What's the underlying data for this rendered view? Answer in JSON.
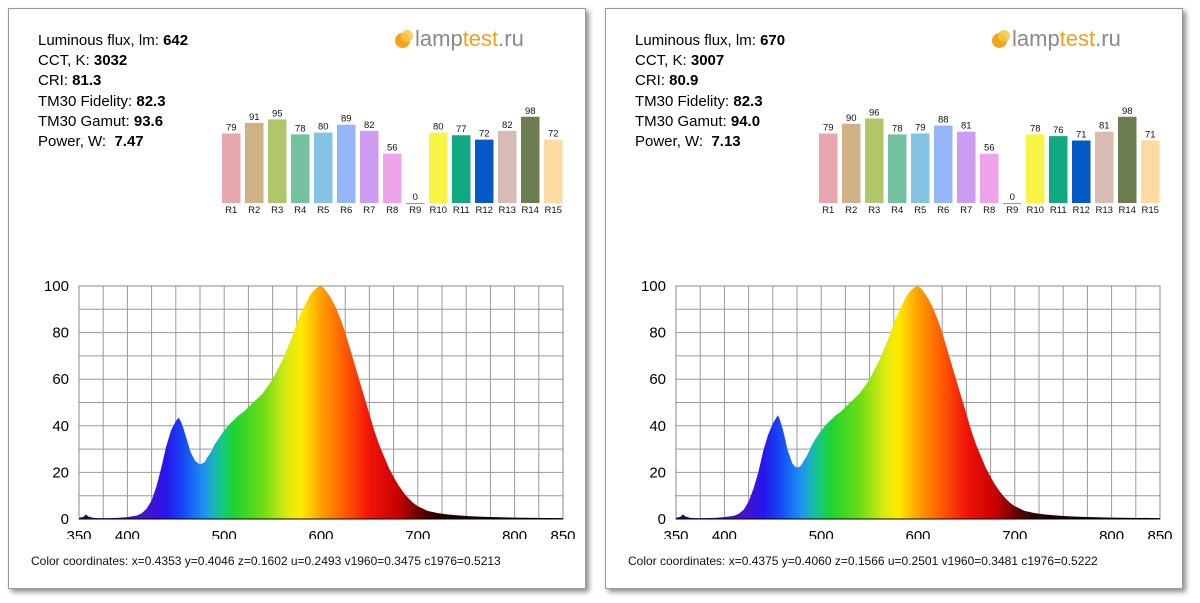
{
  "labels": {
    "flux": "Luminous flux, lm:",
    "cct": "CCT, K:",
    "cri": "CRI:",
    "fidelity": "TM30 Fidelity:",
    "gamut": "TM30 Gamut:",
    "power": "Power, W:",
    "coords": "Color coordinates:"
  },
  "logo": {
    "part1": "lamp",
    "part2": "test",
    "part3": ".ru"
  },
  "panels": [
    {
      "flux": "642",
      "cct": "3032",
      "cri": "81.3",
      "fidelity": "82.3",
      "gamut": "93.6",
      "power": "7.47",
      "coords": "x=0.4353 y=0.4046 z=0.1602 u=0.2493 v1960=0.3475 c1976=0.5213"
    },
    {
      "flux": "670",
      "cct": "3007",
      "cri": "80.9",
      "fidelity": "82.3",
      "gamut": "94.0",
      "power": "7.13",
      "coords": "x=0.4375 y=0.4060 z=0.1566 u=0.2501 v1960=0.3481 c1976=0.5222"
    }
  ],
  "colors": {
    "cri_bars": [
      "#e8a6ae",
      "#ceb184",
      "#b0c66a",
      "#74c29f",
      "#84c3e2",
      "#94b5f8",
      "#cc9cf2",
      "#eea4ea",
      "#e11c2c",
      "#f8f446",
      "#11a983",
      "#0559c6",
      "#d7bcb4",
      "#6b7c4e",
      "#fedaa0"
    ],
    "grid": "#9a9a9a"
  },
  "chart_data": [
    {
      "type": "bar",
      "title": "",
      "categories": [
        "R1",
        "R2",
        "R3",
        "R4",
        "R5",
        "R6",
        "R7",
        "R8",
        "R9",
        "R10",
        "R11",
        "R12",
        "R13",
        "R14",
        "R15"
      ],
      "values": [
        79,
        91,
        95,
        78,
        80,
        89,
        82,
        56,
        0,
        80,
        77,
        72,
        82,
        98,
        72
      ],
      "ylim": [
        0,
        100
      ]
    },
    {
      "type": "area",
      "title": "",
      "xlabel": "",
      "ylabel": "",
      "x": [
        350,
        355,
        357,
        360,
        363,
        365,
        370,
        380,
        390,
        400,
        410,
        415,
        420,
        425,
        430,
        435,
        440,
        445,
        450,
        453,
        455,
        457,
        460,
        463,
        465,
        468,
        470,
        473,
        475,
        478,
        480,
        482,
        485,
        488,
        490,
        495,
        500,
        505,
        510,
        515,
        520,
        525,
        530,
        535,
        540,
        545,
        550,
        555,
        560,
        565,
        570,
        575,
        580,
        585,
        590,
        595,
        598,
        600,
        603,
        605,
        610,
        615,
        620,
        625,
        630,
        635,
        640,
        645,
        650,
        655,
        660,
        665,
        670,
        675,
        680,
        685,
        690,
        695,
        700,
        705,
        710,
        720,
        730,
        740,
        750,
        760,
        770,
        780,
        790,
        800,
        820,
        850
      ],
      "values": [
        0.5,
        1,
        2,
        1,
        0.7,
        0.5,
        0.4,
        0.4,
        0.5,
        0.8,
        1.5,
        2.5,
        4.5,
        8,
        14,
        22,
        31,
        38,
        42,
        43.5,
        42,
        40,
        36,
        32,
        29,
        26.5,
        25,
        24,
        23.5,
        24,
        24.5,
        26,
        28,
        30,
        32,
        35,
        38,
        40.5,
        42.5,
        44.5,
        46,
        48,
        50,
        52,
        54,
        57,
        60,
        64,
        68,
        73,
        78,
        84,
        89,
        93,
        97,
        99,
        99.8,
        100,
        99,
        98,
        95,
        91,
        86,
        80,
        73,
        66,
        59,
        52,
        45,
        38,
        32,
        27,
        22,
        18,
        14.5,
        11.5,
        9,
        7,
        5.5,
        4.5,
        3.5,
        2.6,
        2,
        1.6,
        1.3,
        1.1,
        0.9,
        0.8,
        0.7,
        0.6,
        0.5,
        0.4
      ],
      "xlim": [
        350,
        850
      ],
      "ylim": [
        0,
        100
      ],
      "xticks": [
        350,
        400,
        500,
        600,
        700,
        800,
        850
      ],
      "yticks": [
        0,
        20,
        40,
        60,
        80,
        100
      ],
      "grid": true
    },
    {
      "type": "bar",
      "title": "",
      "categories": [
        "R1",
        "R2",
        "R3",
        "R4",
        "R5",
        "R6",
        "R7",
        "R8",
        "R9",
        "R10",
        "R11",
        "R12",
        "R13",
        "R14",
        "R15"
      ],
      "values": [
        79,
        90,
        96,
        78,
        79,
        88,
        81,
        56,
        0,
        78,
        76,
        71,
        81,
        98,
        71
      ],
      "ylim": [
        0,
        100
      ]
    },
    {
      "type": "area",
      "title": "",
      "xlabel": "",
      "ylabel": "",
      "x": [
        350,
        355,
        357,
        360,
        363,
        365,
        370,
        380,
        390,
        400,
        410,
        415,
        420,
        425,
        430,
        435,
        440,
        445,
        450,
        453,
        455,
        457,
        460,
        463,
        465,
        468,
        470,
        473,
        475,
        478,
        480,
        482,
        485,
        488,
        490,
        495,
        500,
        505,
        510,
        515,
        520,
        525,
        530,
        535,
        540,
        545,
        550,
        555,
        560,
        565,
        570,
        575,
        580,
        585,
        590,
        595,
        598,
        600,
        603,
        605,
        610,
        615,
        620,
        625,
        630,
        635,
        640,
        645,
        650,
        655,
        660,
        665,
        670,
        675,
        680,
        685,
        690,
        695,
        700,
        705,
        710,
        720,
        730,
        740,
        750,
        760,
        770,
        780,
        790,
        800,
        820,
        850
      ],
      "values": [
        0.5,
        1,
        2,
        1,
        0.7,
        0.5,
        0.4,
        0.4,
        0.5,
        0.8,
        1.4,
        2.3,
        4,
        7.5,
        13,
        20,
        29,
        36,
        41,
        43,
        44.5,
        43,
        39,
        34,
        30,
        26.5,
        24,
        22.5,
        22,
        22.5,
        23.5,
        25,
        27,
        29.5,
        31.5,
        35,
        38,
        40.5,
        42.5,
        44.5,
        46,
        48,
        50,
        52,
        54,
        57,
        60,
        64,
        68,
        73,
        78,
        84,
        89,
        93,
        97,
        99,
        99.8,
        100,
        99,
        98,
        95,
        91,
        86,
        80,
        73,
        66,
        59,
        52,
        45,
        38,
        32,
        27,
        22,
        18,
        14.5,
        11.5,
        9,
        7,
        5.5,
        4.5,
        3.5,
        2.6,
        2,
        1.6,
        1.3,
        1.1,
        0.9,
        0.8,
        0.7,
        0.6,
        0.5,
        0.4
      ],
      "xlim": [
        350,
        850
      ],
      "ylim": [
        0,
        100
      ],
      "xticks": [
        350,
        400,
        500,
        600,
        700,
        800,
        850
      ],
      "yticks": [
        0,
        20,
        40,
        60,
        80,
        100
      ],
      "grid": true
    }
  ]
}
